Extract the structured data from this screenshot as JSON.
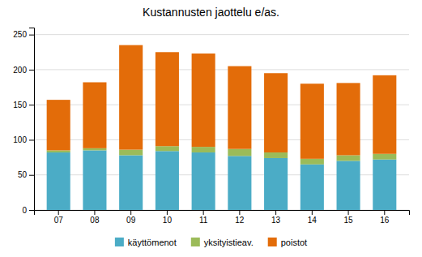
{
  "chart_data": {
    "type": "bar",
    "title": "Kustannusten jaottelu e/as.",
    "categories": [
      "07",
      "08",
      "09",
      "10",
      "11",
      "12",
      "13",
      "14",
      "15",
      "16"
    ],
    "series": [
      {
        "name": "käyttömenot",
        "color": "#4bacc6",
        "values": [
          82,
          85,
          78,
          84,
          82,
          77,
          74,
          65,
          70,
          72
        ]
      },
      {
        "name": "yksityistieav.",
        "color": "#9bbb59",
        "values": [
          3,
          3,
          8,
          7,
          8,
          10,
          8,
          8,
          8,
          8
        ]
      },
      {
        "name": "poistot",
        "color": "#e36c09",
        "values": [
          72,
          94,
          149,
          134,
          133,
          118,
          113,
          107,
          103,
          112
        ]
      }
    ],
    "stacked": true,
    "ylim": [
      0,
      260
    ],
    "yticks": [
      0,
      50,
      100,
      150,
      200,
      250
    ],
    "grid": true,
    "legend": "bottom"
  }
}
